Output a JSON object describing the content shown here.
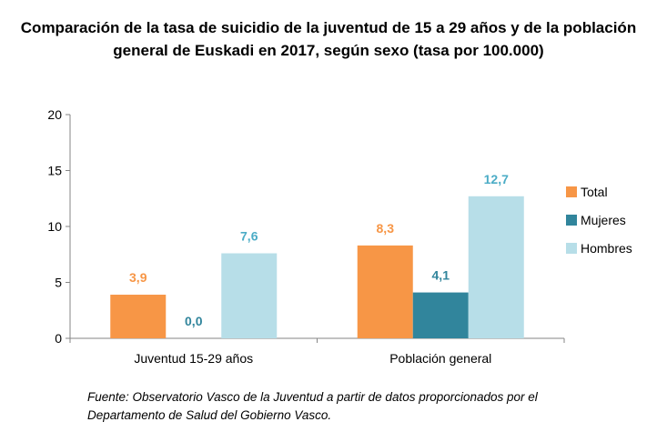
{
  "chart_data": {
    "type": "bar",
    "title": "Comparación de la tasa de suicidio de la juventud de 15 a 29 años y de la población general de Euskadi en 2017, según sexo (tasa por 100.000)",
    "categories": [
      "Juventud 15-29 años",
      "Población general"
    ],
    "series": [
      {
        "name": "Total",
        "values": [
          3.9,
          8.3
        ],
        "labels": [
          "3,9",
          "8,3"
        ],
        "color": "#F79646",
        "label_color": "#F79646"
      },
      {
        "name": "Mujeres",
        "values": [
          0.0,
          4.1
        ],
        "labels": [
          "0,0",
          "4,1"
        ],
        "color": "#31859C",
        "label_color": "#31859C"
      },
      {
        "name": "Hombres",
        "values": [
          7.6,
          12.7
        ],
        "labels": [
          "7,6",
          "12,7"
        ],
        "color": "#B7DEE8",
        "label_color": "#4BACC6"
      }
    ],
    "yticks": [
      "0",
      "5",
      "10",
      "15",
      "20"
    ],
    "ylim": [
      0,
      20
    ],
    "grid": false,
    "legend": "right"
  },
  "source": "Fuente: Observatorio Vasco de la Juventud a partir de datos proporcionados por el Departamento de Salud del Gobierno Vasco."
}
